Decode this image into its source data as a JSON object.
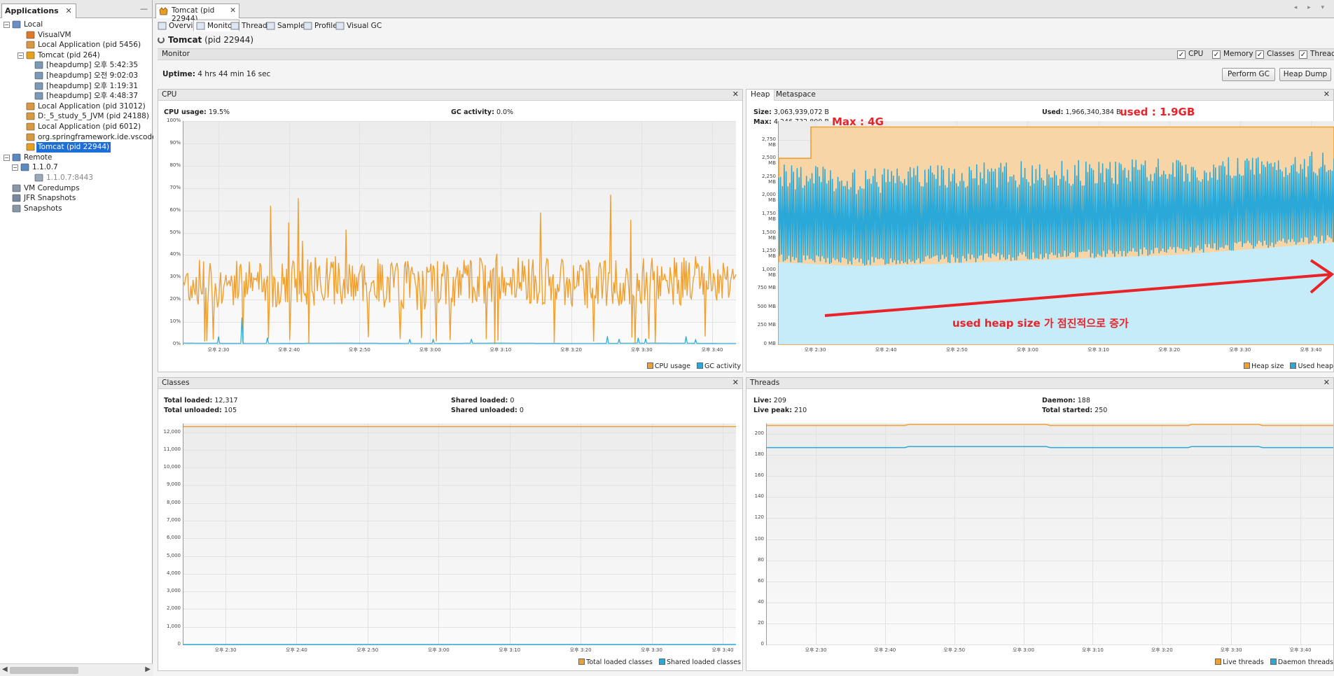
{
  "colors": {
    "orange": "#f0a030",
    "blue": "#2aa8d8",
    "red": "#e8242a",
    "selection": "#1e6ed8"
  },
  "left_panel": {
    "tab_label": "Applications",
    "close": "✕",
    "minimize": "—",
    "tree": [
      {
        "label": "Local",
        "icon": "local-host-icon",
        "toggle": "−"
      },
      {
        "label": "VisualVM",
        "icon": "visualvm-icon"
      },
      {
        "label": "Local Application (pid 5456)",
        "icon": "java-app-icon"
      },
      {
        "label": "Tomcat (pid 264)",
        "icon": "tomcat-icon",
        "toggle": "−"
      },
      {
        "label": "[heapdump] 오후 5:42:35",
        "icon": "heapdump-icon"
      },
      {
        "label": "[heapdump] 오전 9:02:03",
        "icon": "heapdump-icon"
      },
      {
        "label": "[heapdump] 오후 1:19:31",
        "icon": "heapdump-icon"
      },
      {
        "label": "[heapdump] 오후 4:48:37",
        "icon": "heapdump-icon"
      },
      {
        "label": "Local Application (pid 31012)",
        "icon": "java-app-icon"
      },
      {
        "label": "D:_5_study_5_JVM (pid 24188)",
        "icon": "java-app-icon"
      },
      {
        "label": "Local Application (pid 6012)",
        "icon": "java-app-icon"
      },
      {
        "label": "org.springframework.ide.vscode.boot.app",
        "icon": "java-app-icon"
      },
      {
        "label": "Tomcat (pid 22944)",
        "icon": "tomcat-icon"
      },
      {
        "label": "Remote",
        "icon": "remote-host-icon",
        "toggle": "−"
      },
      {
        "label": "1.1.0.7",
        "icon": "remote-host-icon",
        "toggle": "−"
      },
      {
        "label": "1.1.0.7:8443",
        "icon": "jmx-connection-icon"
      },
      {
        "label": "VM Coredumps",
        "icon": "coredump-icon"
      },
      {
        "label": "JFR Snapshots",
        "icon": "jfr-icon"
      },
      {
        "label": "Snapshots",
        "icon": "snapshot-icon"
      }
    ]
  },
  "document_tab": {
    "label": "Tomcat (pid 22944)",
    "close": "✕"
  },
  "nav_arrows": "◂ ▸ ▾",
  "view_tabs": [
    {
      "label": "Overview",
      "icon": "overview-icon"
    },
    {
      "label": "Monitor",
      "icon": "monitor-icon",
      "active": true
    },
    {
      "label": "Threads",
      "icon": "threads-icon"
    },
    {
      "label": "Sampler",
      "icon": "sampler-icon"
    },
    {
      "label": "Profiler",
      "icon": "profiler-icon"
    },
    {
      "label": "Visual GC",
      "icon": "visual-gc-icon"
    }
  ],
  "title": {
    "app": "Tomcat",
    "pid": "(pid 22944)"
  },
  "monitor_bar": {
    "label": "Monitor",
    "checkboxes": [
      {
        "label": "CPU",
        "checked": true
      },
      {
        "label": "Memory",
        "checked": true
      },
      {
        "label": "Classes",
        "checked": true
      },
      {
        "label": "Threads",
        "checked": true
      }
    ]
  },
  "uptime": {
    "label": "Uptime:",
    "value": "4 hrs 44 min 16 sec"
  },
  "buttons": {
    "perform_gc": "Perform GC",
    "heap_dump": "Heap Dump"
  },
  "x_ticks": [
    "오후 2:30",
    "오후 2:40",
    "오후 2:50",
    "오후 3:00",
    "오후 3:10",
    "오후 3:20",
    "오후 3:30",
    "오후 3:40"
  ],
  "cpu_panel": {
    "title": "CPU",
    "close": "✕",
    "cpu_usage_label": "CPU usage:",
    "cpu_usage_value": "19.5%",
    "gc_label": "GC activity:",
    "gc_value": "0.0%",
    "legend": [
      "CPU usage",
      "GC activity"
    ]
  },
  "heap_panel": {
    "tabs": [
      "Heap",
      "Metaspace"
    ],
    "close": "✕",
    "size_label": "Size:",
    "size_value": "3,063,939,072 B",
    "max_label": "Max:",
    "max_value": "4,246,732,800 B",
    "used_label": "Used:",
    "used_value": "1,966,340,384 B",
    "legend": [
      "Heap size",
      "Used heap"
    ],
    "annotations": {
      "max": "Max : 4G",
      "used": "used : 1.9GB",
      "trend": "used heap size 가 점진적으로 증가"
    }
  },
  "classes_panel": {
    "title": "Classes",
    "close": "✕",
    "total_loaded_label": "Total loaded:",
    "total_loaded_value": "12,317",
    "total_unloaded_label": "Total unloaded:",
    "total_unloaded_value": "105",
    "shared_loaded_label": "Shared loaded:",
    "shared_loaded_value": "0",
    "shared_unloaded_label": "Shared unloaded:",
    "shared_unloaded_value": "0",
    "legend": [
      "Total loaded classes",
      "Shared loaded classes"
    ]
  },
  "threads_panel": {
    "title": "Threads",
    "close": "✕",
    "live_label": "Live:",
    "live_value": "209",
    "live_peak_label": "Live peak:",
    "live_peak_value": "210",
    "daemon_label": "Daemon:",
    "daemon_value": "188",
    "total_started_label": "Total started:",
    "total_started_value": "250",
    "legend": [
      "Live threads",
      "Daemon threads"
    ]
  },
  "chart_data": [
    {
      "type": "line",
      "title": "CPU",
      "x": [
        "오후 2:30",
        "오후 2:40",
        "오후 2:50",
        "오후 3:00",
        "오후 3:10",
        "오후 3:20",
        "오후 3:30",
        "오후 3:40"
      ],
      "y_ticks": [
        "0%",
        "10%",
        "20%",
        "30%",
        "40%",
        "50%",
        "60%",
        "70%",
        "80%",
        "90%",
        "100%"
      ],
      "ylim": [
        0,
        100
      ],
      "series": [
        {
          "name": "CPU usage",
          "values": [
            28,
            27,
            29,
            26,
            30,
            27,
            28,
            29
          ],
          "peak": 67
        },
        {
          "name": "GC activity",
          "values": [
            0.5,
            0.4,
            0.5,
            0.4,
            0.5,
            0.4,
            0.5,
            0.4
          ],
          "peak": 12
        }
      ]
    },
    {
      "type": "area",
      "title": "Heap",
      "x": [
        "오후 2:30",
        "오후 2:40",
        "오후 2:50",
        "오후 3:00",
        "오후 3:10",
        "오후 3:20",
        "오후 3:30",
        "오후 3:40"
      ],
      "y_ticks": [
        "0 MB",
        "250 MB",
        "500 MB",
        "750 MB",
        "1,000 MB",
        "1,250 MB",
        "1,500 MB",
        "1,750 MB",
        "2,000 MB",
        "2,250 MB",
        "2,500 MB",
        "2,750 MB"
      ],
      "ylim": [
        0,
        3000
      ],
      "series": [
        {
          "name": "Heap size",
          "values": [
            2500,
            2920,
            2920,
            2920,
            2920,
            2920,
            2920,
            2920
          ]
        },
        {
          "name": "Used heap",
          "min": [
            1100,
            1050,
            1080,
            1120,
            1160,
            1200,
            1280,
            1370
          ],
          "max": [
            2440,
            2350,
            2420,
            2460,
            2480,
            2520,
            2560,
            2600
          ]
        }
      ]
    },
    {
      "type": "line",
      "title": "Classes",
      "x": [
        "오후 2:30",
        "오후 2:40",
        "오후 2:50",
        "오후 3:00",
        "오후 3:10",
        "오후 3:20",
        "오후 3:30",
        "오후 3:40"
      ],
      "y_ticks": [
        "0",
        "1,000",
        "2,000",
        "3,000",
        "4,000",
        "5,000",
        "6,000",
        "7,000",
        "8,000",
        "9,000",
        "10,000",
        "11,000",
        "12,000"
      ],
      "ylim": [
        0,
        12500
      ],
      "series": [
        {
          "name": "Total loaded classes",
          "values": [
            12317,
            12317,
            12317,
            12317,
            12317,
            12317,
            12317,
            12317
          ]
        },
        {
          "name": "Shared loaded classes",
          "values": [
            0,
            0,
            0,
            0,
            0,
            0,
            0,
            0
          ]
        }
      ]
    },
    {
      "type": "line",
      "title": "Threads",
      "x": [
        "오후 2:30",
        "오후 2:40",
        "오후 2:50",
        "오후 3:00",
        "오후 3:10",
        "오후 3:20",
        "오후 3:30",
        "오후 3:40"
      ],
      "y_ticks": [
        "0",
        "20",
        "40",
        "60",
        "80",
        "100",
        "120",
        "140",
        "160",
        "180",
        "200"
      ],
      "ylim": [
        0,
        210
      ],
      "series": [
        {
          "name": "Live threads",
          "values": [
            208,
            208,
            209,
            209,
            208,
            208,
            209,
            208
          ]
        },
        {
          "name": "Daemon threads",
          "values": [
            187,
            187,
            188,
            188,
            187,
            187,
            188,
            187
          ]
        }
      ]
    }
  ]
}
